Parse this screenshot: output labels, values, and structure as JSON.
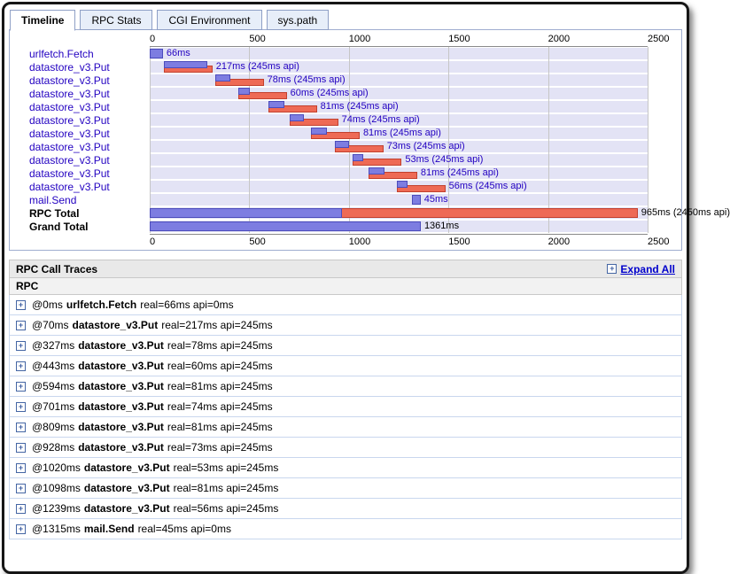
{
  "tabs": [
    {
      "label": "Timeline",
      "active": true
    },
    {
      "label": "RPC Stats",
      "active": false
    },
    {
      "label": "CGI Environment",
      "active": false
    },
    {
      "label": "sys.path",
      "active": false
    }
  ],
  "timeline": {
    "axis_max": 2500,
    "axis_ticks": [
      0,
      500,
      1000,
      1500,
      2000,
      2500
    ],
    "rows": [
      {
        "name": "urlfetch.Fetch",
        "start": 0,
        "real": 66,
        "api": 0,
        "label": "66ms",
        "type": "rpc"
      },
      {
        "name": "datastore_v3.Put",
        "start": 70,
        "real": 217,
        "api": 245,
        "label": "217ms (245ms api)",
        "type": "rpc"
      },
      {
        "name": "datastore_v3.Put",
        "start": 327,
        "real": 78,
        "api": 245,
        "label": "78ms (245ms api)",
        "type": "rpc"
      },
      {
        "name": "datastore_v3.Put",
        "start": 443,
        "real": 60,
        "api": 245,
        "label": "60ms (245ms api)",
        "type": "rpc"
      },
      {
        "name": "datastore_v3.Put",
        "start": 594,
        "real": 81,
        "api": 245,
        "label": "81ms (245ms api)",
        "type": "rpc"
      },
      {
        "name": "datastore_v3.Put",
        "start": 701,
        "real": 74,
        "api": 245,
        "label": "74ms (245ms api)",
        "type": "rpc"
      },
      {
        "name": "datastore_v3.Put",
        "start": 809,
        "real": 81,
        "api": 245,
        "label": "81ms (245ms api)",
        "type": "rpc"
      },
      {
        "name": "datastore_v3.Put",
        "start": 928,
        "real": 73,
        "api": 245,
        "label": "73ms (245ms api)",
        "type": "rpc"
      },
      {
        "name": "datastore_v3.Put",
        "start": 1020,
        "real": 53,
        "api": 245,
        "label": "53ms (245ms api)",
        "type": "rpc"
      },
      {
        "name": "datastore_v3.Put",
        "start": 1098,
        "real": 81,
        "api": 245,
        "label": "81ms (245ms api)",
        "type": "rpc"
      },
      {
        "name": "datastore_v3.Put",
        "start": 1239,
        "real": 56,
        "api": 245,
        "label": "56ms (245ms api)",
        "type": "rpc"
      },
      {
        "name": "mail.Send",
        "start": 1315,
        "real": 45,
        "api": 0,
        "label": "45ms",
        "type": "rpc"
      },
      {
        "name": "RPC Total",
        "start": 0,
        "real": 965,
        "api": 2450,
        "label": "965ms (2450ms api)",
        "type": "total"
      },
      {
        "name": "Grand Total",
        "start": 0,
        "real": 1361,
        "api": 0,
        "label": "1361ms",
        "type": "total"
      }
    ]
  },
  "traces": {
    "title": "RPC Call Traces",
    "expand_all_label": "Expand All",
    "column_header": "RPC",
    "rows": [
      {
        "offset": "@0ms",
        "method": "urlfetch.Fetch",
        "detail": "real=66ms api=0ms"
      },
      {
        "offset": "@70ms",
        "method": "datastore_v3.Put",
        "detail": "real=217ms api=245ms"
      },
      {
        "offset": "@327ms",
        "method": "datastore_v3.Put",
        "detail": "real=78ms api=245ms"
      },
      {
        "offset": "@443ms",
        "method": "datastore_v3.Put",
        "detail": "real=60ms api=245ms"
      },
      {
        "offset": "@594ms",
        "method": "datastore_v3.Put",
        "detail": "real=81ms api=245ms"
      },
      {
        "offset": "@701ms",
        "method": "datastore_v3.Put",
        "detail": "real=74ms api=245ms"
      },
      {
        "offset": "@809ms",
        "method": "datastore_v3.Put",
        "detail": "real=81ms api=245ms"
      },
      {
        "offset": "@928ms",
        "method": "datastore_v3.Put",
        "detail": "real=73ms api=245ms"
      },
      {
        "offset": "@1020ms",
        "method": "datastore_v3.Put",
        "detail": "real=53ms api=245ms"
      },
      {
        "offset": "@1098ms",
        "method": "datastore_v3.Put",
        "detail": "real=81ms api=245ms"
      },
      {
        "offset": "@1239ms",
        "method": "datastore_v3.Put",
        "detail": "real=56ms api=245ms"
      },
      {
        "offset": "@1315ms",
        "method": "mail.Send",
        "detail": "real=45ms api=0ms"
      }
    ]
  },
  "icons": {
    "expand": "+"
  },
  "colors": {
    "bar_real": "#7d7de1",
    "bar_api": "#ee6a55",
    "row_stripe": "#e3e3f5",
    "link_blue": "#0000cc",
    "label_blue": "#2200c1"
  }
}
